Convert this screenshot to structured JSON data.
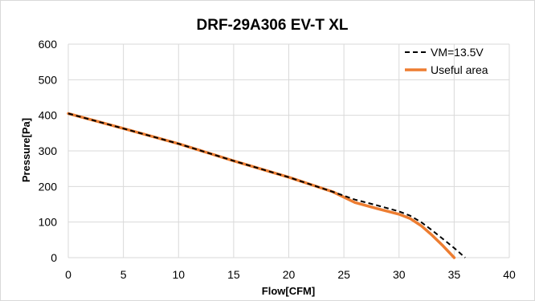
{
  "chart_data": {
    "type": "line",
    "title": "DRF-29A306 EV-T XL",
    "xlabel": "Flow[CFM]",
    "ylabel": "Pressure[Pa]",
    "xlim": [
      0,
      40
    ],
    "ylim": [
      0,
      600
    ],
    "xticks": [
      "0",
      "5",
      "10",
      "15",
      "20",
      "25",
      "30",
      "35",
      "40"
    ],
    "yticks": [
      "0",
      "100",
      "200",
      "300",
      "400",
      "500",
      "600"
    ],
    "grid": true,
    "legend_position": "top-right",
    "series": [
      {
        "name": "VM=13.5V",
        "style": "dashed",
        "color": "#000000",
        "x": [
          0,
          5,
          10,
          15,
          20,
          24,
          26,
          28,
          30,
          31,
          32,
          33,
          34,
          35,
          36
        ],
        "y": [
          405,
          363,
          320,
          272,
          226,
          185,
          163,
          147,
          130,
          118,
          100,
          77,
          52,
          27,
          0
        ]
      },
      {
        "name": "Useful area",
        "style": "solid",
        "color": "#ed7d31",
        "x": [
          0,
          5,
          10,
          15,
          20,
          24,
          26,
          28,
          30,
          31,
          32,
          33,
          34,
          35
        ],
        "y": [
          405,
          363,
          320,
          272,
          226,
          185,
          155,
          138,
          122,
          110,
          90,
          63,
          33,
          0
        ]
      }
    ]
  }
}
